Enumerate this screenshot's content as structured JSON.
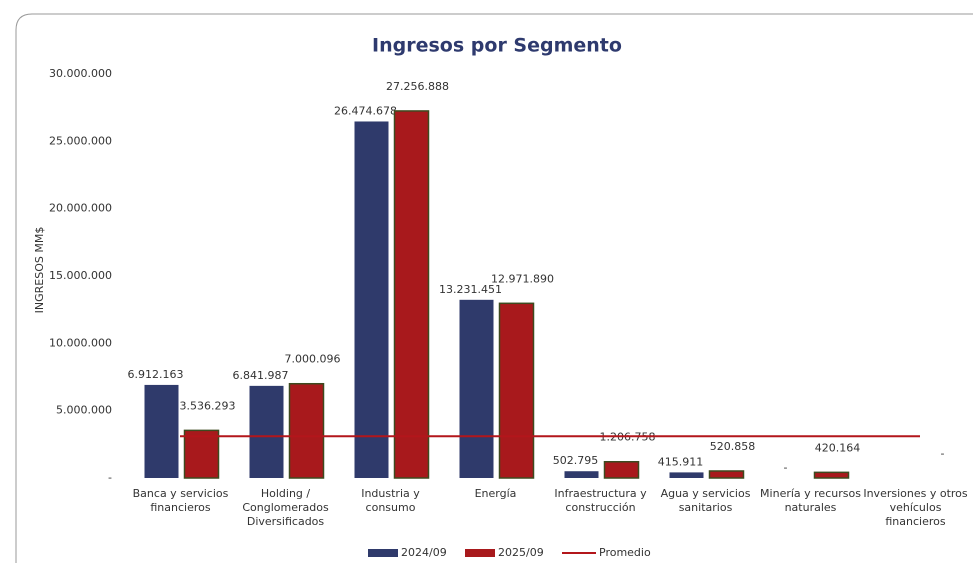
{
  "chart_data": {
    "type": "bar",
    "title": "Ingresos por Segmento",
    "y_label": "INGRESOS MM$",
    "categories": [
      [
        "Banca y servicios",
        "financieros"
      ],
      [
        "Holding /",
        "Conglomerados",
        "Diversificados"
      ],
      [
        "Industria y",
        "consumo"
      ],
      [
        "Energía"
      ],
      [
        "Infraestructura y",
        "construcción"
      ],
      [
        "Agua y servicios",
        "sanitarios"
      ],
      [
        "Minería y recursos",
        "naturales"
      ],
      [
        "Inversiones y otros",
        "vehículos",
        "financieros"
      ]
    ],
    "series": [
      {
        "name": "2024/09",
        "color": "#2f3a6b",
        "values": [
          6912163,
          6841987,
          26474678,
          13231451,
          502795,
          415911,
          0,
          0
        ],
        "value_labels": [
          "6.912.163",
          "6.841.987",
          "26.474.678",
          "13.231.451",
          "502.795",
          "415.911",
          "-",
          null
        ]
      },
      {
        "name": "2025/09",
        "color": "#a8191c",
        "values": [
          3536293,
          7000096,
          27256888,
          12971890,
          1206758,
          520858,
          420164,
          0
        ],
        "value_labels": [
          "3.536.293",
          "7.000.096",
          "27.256.888",
          "12.971.890",
          "1.206.758",
          "520.858",
          "420.164",
          "-"
        ]
      }
    ],
    "average": {
      "name": "Promedio",
      "value": 3100000,
      "color": "#b3161b"
    },
    "ylim": [
      0,
      30000000
    ],
    "yticks": [
      {
        "value": 0,
        "label": "-"
      },
      {
        "value": 5000000,
        "label": "5.000.000"
      },
      {
        "value": 10000000,
        "label": "10.000.000"
      },
      {
        "value": 15000000,
        "label": "15.000.000"
      },
      {
        "value": 20000000,
        "label": "20.000.000"
      },
      {
        "value": 25000000,
        "label": "25.000.000"
      },
      {
        "value": 30000000,
        "label": "30.000.000"
      }
    ],
    "grid": false
  }
}
